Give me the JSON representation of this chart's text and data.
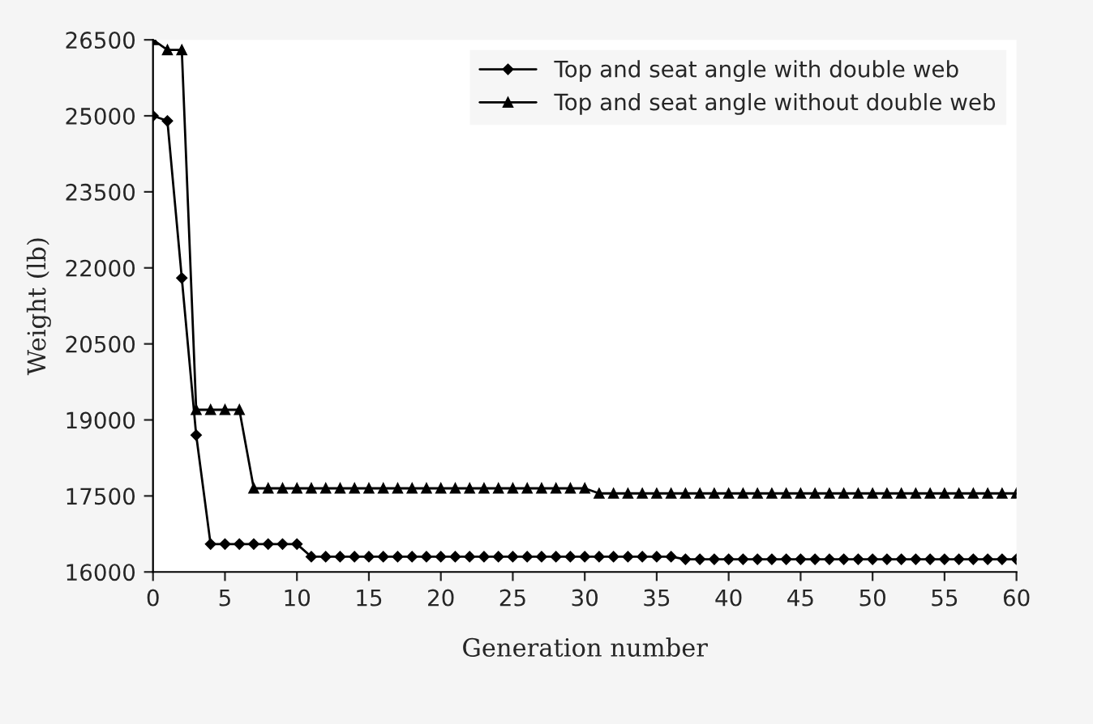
{
  "chart_data": {
    "type": "line",
    "xlabel": "Generation number",
    "ylabel": "Weight (lb)",
    "x": [
      0,
      1,
      2,
      3,
      4,
      5,
      6,
      7,
      8,
      9,
      10,
      11,
      12,
      13,
      14,
      15,
      16,
      17,
      18,
      19,
      20,
      21,
      22,
      23,
      24,
      25,
      26,
      27,
      28,
      29,
      30,
      31,
      32,
      33,
      34,
      35,
      36,
      37,
      38,
      39,
      40,
      41,
      42,
      43,
      44,
      45,
      46,
      47,
      48,
      49,
      50,
      51,
      52,
      53,
      54,
      55,
      56,
      57,
      58,
      59,
      60
    ],
    "series": [
      {
        "name": "Top and seat angle with double web",
        "color": "#000000",
        "marker": "diamond",
        "values": [
          25000,
          24900,
          21800,
          18700,
          16550,
          16550,
          16550,
          16550,
          16550,
          16550,
          16550,
          16300,
          16300,
          16300,
          16300,
          16300,
          16300,
          16300,
          16300,
          16300,
          16300,
          16300,
          16300,
          16300,
          16300,
          16300,
          16300,
          16300,
          16300,
          16300,
          16300,
          16300,
          16300,
          16300,
          16300,
          16300,
          16300,
          16250,
          16250,
          16250,
          16250,
          16250,
          16250,
          16250,
          16250,
          16250,
          16250,
          16250,
          16250,
          16250,
          16250,
          16250,
          16250,
          16250,
          16250,
          16250,
          16250,
          16250,
          16250,
          16250,
          16250
        ]
      },
      {
        "name": "Top and seat angle without double web",
        "color": "#000000",
        "marker": "triangle",
        "values": [
          26500,
          26300,
          26300,
          19200,
          19200,
          19200,
          19200,
          17650,
          17650,
          17650,
          17650,
          17650,
          17650,
          17650,
          17650,
          17650,
          17650,
          17650,
          17650,
          17650,
          17650,
          17650,
          17650,
          17650,
          17650,
          17650,
          17650,
          17650,
          17650,
          17650,
          17650,
          17550,
          17550,
          17550,
          17550,
          17550,
          17550,
          17550,
          17550,
          17550,
          17550,
          17550,
          17550,
          17550,
          17550,
          17550,
          17550,
          17550,
          17550,
          17550,
          17550,
          17550,
          17550,
          17550,
          17550,
          17550,
          17550,
          17550,
          17550,
          17550,
          17550
        ]
      }
    ],
    "xlim": [
      0,
      60
    ],
    "xticks": [
      0,
      5,
      10,
      15,
      20,
      25,
      30,
      35,
      40,
      45,
      50,
      55,
      60
    ],
    "ylim": [
      16000,
      26500
    ],
    "yticks": [
      16000,
      17500,
      19000,
      20500,
      22000,
      23500,
      25000,
      26500
    ],
    "grid": false,
    "legend": "top right"
  }
}
